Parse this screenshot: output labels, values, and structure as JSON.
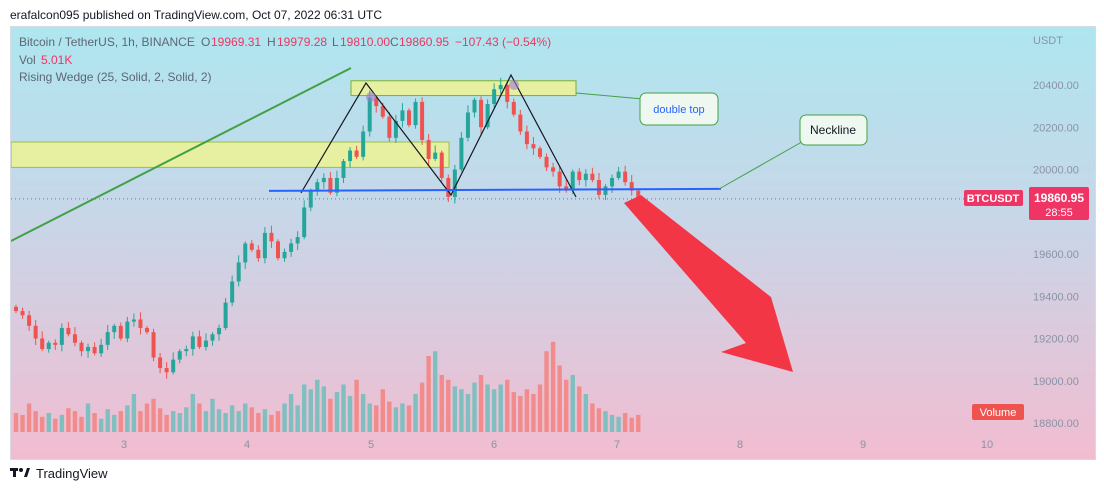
{
  "header": {
    "publisher": "erafalcon095 published on TradingView.com, Oct 07, 2022 06:31 UTC"
  },
  "legend": {
    "symbol": "Bitcoin / TetherUS, 1h, BINANCE",
    "o_label": "O",
    "o_value": "19969.31",
    "h_label": "H",
    "h_value": "19979.28",
    "l_label": "L",
    "l_value": "19810.00",
    "c_label": "C",
    "c_value": "19860.95",
    "change": "−107.43 (−0.54%)",
    "vol_label": "Vol",
    "vol_value": "5.01K",
    "indicator": "Rising Wedge (25, Solid, 2, Solid, 2)"
  },
  "price_axis": {
    "currency": "USDT",
    "ticks": [
      "20400.00",
      "20200.00",
      "20000.00",
      "19800.00",
      "19600.00",
      "19400.00",
      "19200.00",
      "19000.00",
      "18800.00"
    ]
  },
  "time_axis": {
    "ticks": [
      "3",
      "4",
      "5",
      "6",
      "7",
      "8",
      "9",
      "10"
    ]
  },
  "price_tag": {
    "symbol": "BTCUSDT",
    "price": "19860.95",
    "countdown": "28:55"
  },
  "volume_label": "Volume",
  "annotations": {
    "double_top": "double top",
    "neckline": "Neckline"
  },
  "footer": {
    "brand": "TradingView"
  },
  "colors": {
    "up": "#26a69a",
    "down": "#ef5350",
    "vol_up": "#7fbfbf",
    "vol_down": "#f28b8b",
    "neckline": "#2962ff",
    "wedge": "#43a047",
    "zone": "#e6f0a0",
    "arrow": "#f23645",
    "price_tag": "#ef3564"
  },
  "chart_data": {
    "type": "candlestick",
    "title": "Bitcoin / TetherUS, 1h, BINANCE",
    "x_ticks": [
      "3",
      "4",
      "5",
      "6",
      "7",
      "8",
      "9",
      "10"
    ],
    "ylim": [
      18800,
      20530
    ],
    "y_ticks": [
      18800,
      19000,
      19200,
      19400,
      19600,
      19800,
      20000,
      20200,
      20400
    ],
    "last_price": 19860.95,
    "neckline_price": 19880,
    "double_top_zone": [
      20350,
      20420
    ],
    "resistance_zone": [
      20010,
      20130
    ],
    "close_series": [
      19330,
      19310,
      19260,
      19200,
      19150,
      19180,
      19170,
      19250,
      19220,
      19180,
      19140,
      19160,
      19130,
      19170,
      19230,
      19260,
      19200,
      19280,
      19290,
      19250,
      19230,
      19110,
      19060,
      19040,
      19100,
      19140,
      19150,
      19210,
      19160,
      19190,
      19220,
      19250,
      19370,
      19470,
      19560,
      19650,
      19620,
      19580,
      19700,
      19660,
      19580,
      19610,
      19650,
      19680,
      19820,
      19900,
      19940,
      19960,
      19890,
      19960,
      20040,
      20090,
      20060,
      20180,
      20340,
      20300,
      20250,
      20150,
      20230,
      20280,
      20210,
      20320,
      20140,
      20050,
      20080,
      19960,
      19870,
      20000,
      20150,
      20270,
      20330,
      20200,
      20310,
      20380,
      20400,
      20320,
      20260,
      20180,
      20120,
      20100,
      20060,
      20010,
      19990,
      19920,
      19900,
      19990,
      19950,
      19980,
      19950,
      19880,
      19920,
      19960,
      19990,
      19940,
      19900,
      19860
    ],
    "volume_series": [
      20,
      18,
      30,
      22,
      16,
      20,
      14,
      18,
      25,
      22,
      16,
      30,
      20,
      14,
      24,
      18,
      22,
      28,
      40,
      22,
      30,
      35,
      25,
      18,
      22,
      20,
      26,
      40,
      30,
      22,
      35,
      24,
      20,
      28,
      22,
      30,
      26,
      20,
      24,
      18,
      22,
      30,
      40,
      28,
      50,
      45,
      55,
      48,
      35,
      42,
      50,
      38,
      55,
      40,
      30,
      28,
      45,
      32,
      26,
      30,
      28,
      40,
      52,
      80,
      85,
      60,
      55,
      48,
      45,
      40,
      52,
      60,
      50,
      45,
      50,
      55,
      42,
      38,
      45,
      40,
      50,
      85,
      95,
      70,
      55,
      60,
      48,
      40,
      30,
      25,
      22,
      18,
      16,
      20,
      15,
      18
    ],
    "series": [
      {
        "name": "Volume"
      }
    ]
  }
}
